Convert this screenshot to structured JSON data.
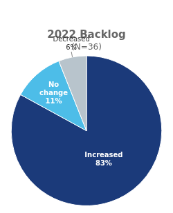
{
  "chart_data": {
    "type": "pie",
    "title": "2022 Backlog",
    "subtitle": "(N=36)",
    "categories": [
      "Increased",
      "No\nchange",
      "Decreased"
    ],
    "values": [
      83,
      11,
      6
    ],
    "value_labels": [
      "83%",
      "11%",
      "6%"
    ],
    "colors": [
      "#1b3a7a",
      "#4dbde8",
      "#b8c4cc"
    ],
    "data_labels": true
  }
}
